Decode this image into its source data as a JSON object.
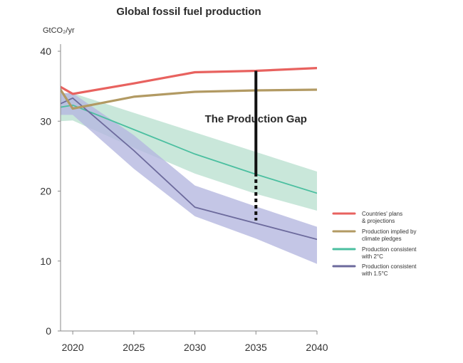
{
  "chart_data": {
    "type": "line",
    "title": "Global fossil fuel production",
    "ylabel": "GtCO₂/yr",
    "xlabel": "",
    "xlim": [
      2019,
      2040
    ],
    "ylim": [
      0,
      40
    ],
    "x_ticks": [
      2020,
      2025,
      2030,
      2035,
      2040
    ],
    "y_ticks": [
      0,
      10,
      20,
      30,
      40
    ],
    "series": [
      {
        "name": "Countries' plans & projections",
        "legend_lines": [
          "Countries' plans",
          "& projections"
        ],
        "color": "#e8625f",
        "x": [
          2019,
          2020,
          2025,
          2030,
          2035,
          2040
        ],
        "y": [
          34.9,
          33.9,
          35.4,
          37.0,
          37.2,
          37.6
        ]
      },
      {
        "name": "Production implied by climate pledges",
        "legend_lines": [
          "Production implied by",
          " climate pledges"
        ],
        "color": "#b29a63",
        "x": [
          2019,
          2020,
          2025,
          2030,
          2035,
          2040
        ],
        "y": [
          34.5,
          31.8,
          33.5,
          34.2,
          34.4,
          34.5
        ]
      },
      {
        "name": "Production consistent with 2°C",
        "legend_lines": [
          "Production consistent",
          "with 2°C"
        ],
        "color": "#4bbfa0",
        "band_color": "#bfe3d3",
        "x": [
          2019,
          2020,
          2025,
          2030,
          2035,
          2040
        ],
        "y": [
          32.0,
          32.3,
          28.8,
          25.3,
          22.4,
          19.7
        ],
        "band_upper": [
          34.0,
          34.0,
          31.2,
          28.4,
          25.6,
          22.8
        ],
        "band_lower": [
          30.0,
          30.1,
          26.2,
          22.5,
          19.6,
          17.2
        ]
      },
      {
        "name": "Production consistent with 1.5°C",
        "legend_lines": [
          "Production consistent",
          "with 1.5°C"
        ],
        "color": "#6c6a9c",
        "band_color": "#b5b8e0",
        "x": [
          2019,
          2020,
          2025,
          2030,
          2035,
          2040
        ],
        "y": [
          32.5,
          33.3,
          25.8,
          17.7,
          15.4,
          13.1
        ],
        "band_upper": [
          34.0,
          34.0,
          28.0,
          20.8,
          17.8,
          14.9
        ],
        "band_lower": [
          30.9,
          30.9,
          23.2,
          16.4,
          13.2,
          9.6
        ]
      }
    ],
    "annotation": {
      "text": "The Production Gap",
      "x": 2035,
      "y_top": 37.2,
      "y_solid_end": 22.6,
      "y_bottom": 15.8
    }
  }
}
